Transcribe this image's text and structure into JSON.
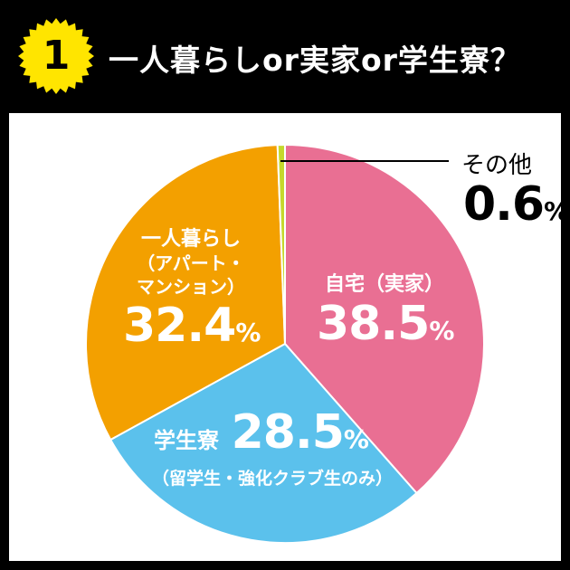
{
  "header": {
    "badge_number": "1",
    "title": "一人暮らしor実家or学生寮？"
  },
  "chart_data": {
    "type": "pie",
    "unit": "%",
    "slices": [
      {
        "label": "自宅（実家）",
        "value": 38.5,
        "value_text": "38.5",
        "color": "#E96F93"
      },
      {
        "label": "学生寮",
        "sublabel": "（留学生・強化クラブ生のみ）",
        "value": 28.5,
        "value_text": "28.5",
        "color": "#5BC1EC"
      },
      {
        "label": "一人暮らし",
        "sublabel_lines": [
          "（アパート・",
          "マンション）"
        ],
        "value": 32.4,
        "value_text": "32.4",
        "color": "#F3A000"
      },
      {
        "label": "その他",
        "value": 0.6,
        "value_text": "0.6",
        "color": "#C5D82C"
      }
    ]
  }
}
